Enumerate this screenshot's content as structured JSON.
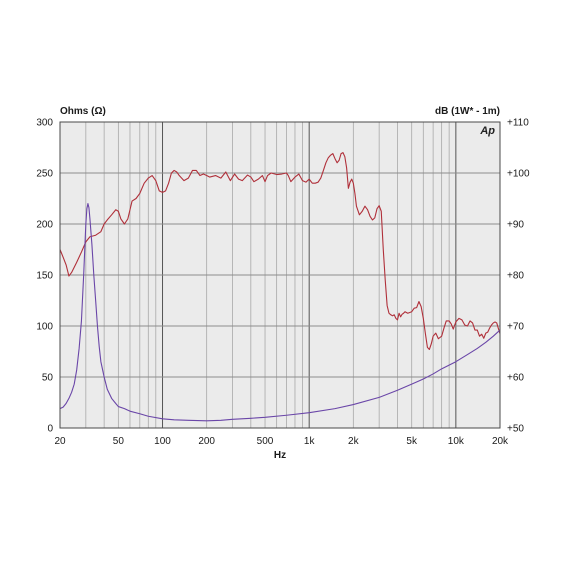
{
  "chart_data": {
    "type": "line",
    "title": "",
    "xlabel": "Hz",
    "ylabel_left": "Ohms (Ω)",
    "ylabel_right": "dB (1W* - 1m)",
    "brand_mark": "Ap",
    "x_scale": "log",
    "xlim": [
      20,
      20000
    ],
    "ylim_left": [
      0,
      300
    ],
    "ylim_right": [
      50,
      110
    ],
    "grid": true,
    "legend": "none",
    "x_ticks": [
      {
        "value": 20,
        "label": "20"
      },
      {
        "value": 50,
        "label": "50"
      },
      {
        "value": 100,
        "label": "100"
      },
      {
        "value": 200,
        "label": "200"
      },
      {
        "value": 500,
        "label": "500"
      },
      {
        "value": 1000,
        "label": "1k"
      },
      {
        "value": 2000,
        "label": "2k"
      },
      {
        "value": 5000,
        "label": "5k"
      },
      {
        "value": 10000,
        "label": "10k"
      },
      {
        "value": 20000,
        "label": "20k"
      }
    ],
    "y_ticks_left": [
      {
        "value": 0,
        "label": "0"
      },
      {
        "value": 50,
        "label": "50"
      },
      {
        "value": 100,
        "label": "100"
      },
      {
        "value": 150,
        "label": "150"
      },
      {
        "value": 200,
        "label": "200"
      },
      {
        "value": 250,
        "label": "250"
      },
      {
        "value": 300,
        "label": "300"
      }
    ],
    "y_ticks_right": [
      {
        "value": 50,
        "label": "+50"
      },
      {
        "value": 60,
        "label": "+60"
      },
      {
        "value": 70,
        "label": "+70"
      },
      {
        "value": 80,
        "label": "+80"
      },
      {
        "value": 90,
        "label": "+90"
      },
      {
        "value": 100,
        "label": "+100"
      },
      {
        "value": 110,
        "label": "+110"
      }
    ],
    "series": [
      {
        "axis": "right",
        "color": "#b0303a",
        "points": [
          [
            20,
            85
          ],
          [
            21,
            83.5
          ],
          [
            22,
            82
          ],
          [
            23,
            79.8
          ],
          [
            24,
            80.5
          ],
          [
            26,
            82.5
          ],
          [
            28,
            84.5
          ],
          [
            30,
            86.5
          ],
          [
            32,
            87.5
          ],
          [
            35,
            87.8
          ],
          [
            38,
            88.5
          ],
          [
            40,
            90
          ],
          [
            42,
            90.8
          ],
          [
            45,
            91.8
          ],
          [
            48,
            92.8
          ],
          [
            50,
            92.5
          ],
          [
            52,
            91
          ],
          [
            55,
            90
          ],
          [
            58,
            91
          ],
          [
            62,
            94.5
          ],
          [
            66,
            95
          ],
          [
            70,
            96
          ],
          [
            75,
            98
          ],
          [
            80,
            99
          ],
          [
            85,
            99.5
          ],
          [
            90,
            98.5
          ],
          [
            95,
            96.5
          ],
          [
            100,
            96.2
          ],
          [
            105,
            96.5
          ],
          [
            110,
            98
          ],
          [
            115,
            100
          ],
          [
            120,
            100.5
          ],
          [
            125,
            100.2
          ],
          [
            130,
            99.5
          ],
          [
            140,
            98.5
          ],
          [
            150,
            99
          ],
          [
            160,
            100.5
          ],
          [
            170,
            100.5
          ],
          [
            180,
            99.5
          ],
          [
            190,
            99.8
          ],
          [
            200,
            99.5
          ],
          [
            210,
            99.2
          ],
          [
            230,
            99.5
          ],
          [
            250,
            99
          ],
          [
            270,
            100.2
          ],
          [
            290,
            98.5
          ],
          [
            310,
            99.8
          ],
          [
            330,
            98.8
          ],
          [
            350,
            98.5
          ],
          [
            380,
            99.6
          ],
          [
            400,
            99.2
          ],
          [
            420,
            98.3
          ],
          [
            450,
            98.8
          ],
          [
            480,
            99.5
          ],
          [
            500,
            98.3
          ],
          [
            520,
            99.5
          ],
          [
            550,
            100
          ],
          [
            600,
            99.7
          ],
          [
            650,
            99.8
          ],
          [
            700,
            100
          ],
          [
            720,
            99.5
          ],
          [
            750,
            98.3
          ],
          [
            800,
            99.2
          ],
          [
            850,
            99.8
          ],
          [
            900,
            98.5
          ],
          [
            950,
            98.2
          ],
          [
            1000,
            98.8
          ],
          [
            1050,
            98
          ],
          [
            1100,
            98
          ],
          [
            1150,
            98.2
          ],
          [
            1200,
            99
          ],
          [
            1250,
            100.5
          ],
          [
            1300,
            102
          ],
          [
            1350,
            103
          ],
          [
            1400,
            103.5
          ],
          [
            1450,
            103.8
          ],
          [
            1500,
            102.8
          ],
          [
            1550,
            102
          ],
          [
            1600,
            102.5
          ],
          [
            1650,
            103.8
          ],
          [
            1700,
            104
          ],
          [
            1750,
            103.2
          ],
          [
            1800,
            101
          ],
          [
            1850,
            97
          ],
          [
            1900,
            98.2
          ],
          [
            1950,
            98.8
          ],
          [
            2000,
            98
          ],
          [
            2050,
            96
          ],
          [
            2100,
            93.5
          ],
          [
            2200,
            91.8
          ],
          [
            2300,
            92.5
          ],
          [
            2400,
            93.5
          ],
          [
            2500,
            92.8
          ],
          [
            2600,
            91.5
          ],
          [
            2700,
            90.8
          ],
          [
            2800,
            91.2
          ],
          [
            2900,
            93
          ],
          [
            3000,
            93.6
          ],
          [
            3100,
            92.5
          ],
          [
            3200,
            85
          ],
          [
            3300,
            79
          ],
          [
            3400,
            74
          ],
          [
            3500,
            72.5
          ],
          [
            3600,
            72.2
          ],
          [
            3700,
            72
          ],
          [
            3800,
            72.2
          ],
          [
            3900,
            71.5
          ],
          [
            4000,
            71.2
          ],
          [
            4100,
            72.5
          ],
          [
            4200,
            71.8
          ],
          [
            4300,
            72.3
          ],
          [
            4400,
            72.5
          ],
          [
            4500,
            72.8
          ],
          [
            4700,
            72.5
          ],
          [
            5000,
            72.8
          ],
          [
            5200,
            73.5
          ],
          [
            5400,
            73.6
          ],
          [
            5600,
            74.8
          ],
          [
            5800,
            73.8
          ],
          [
            6000,
            71.5
          ],
          [
            6200,
            68.5
          ],
          [
            6400,
            65.8
          ],
          [
            6600,
            65.4
          ],
          [
            6800,
            66.5
          ],
          [
            7000,
            68
          ],
          [
            7300,
            68.6
          ],
          [
            7600,
            67.5
          ],
          [
            8000,
            68
          ],
          [
            8300,
            69.6
          ],
          [
            8600,
            71
          ],
          [
            9000,
            71
          ],
          [
            9300,
            70.4
          ],
          [
            9600,
            69.4
          ],
          [
            10000,
            70.8
          ],
          [
            10500,
            71.5
          ],
          [
            11000,
            71.2
          ],
          [
            11500,
            70.2
          ],
          [
            12000,
            70
          ],
          [
            12500,
            71
          ],
          [
            13000,
            70.6
          ],
          [
            13500,
            69.2
          ],
          [
            14000,
            69.2
          ],
          [
            14500,
            68
          ],
          [
            15000,
            68.4
          ],
          [
            15500,
            67.6
          ],
          [
            16000,
            68.6
          ],
          [
            16500,
            68.8
          ],
          [
            17000,
            69.6
          ],
          [
            17500,
            70.2
          ],
          [
            18000,
            70.6
          ],
          [
            18500,
            70.8
          ],
          [
            19000,
            70.6
          ],
          [
            19500,
            69.5
          ],
          [
            20000,
            68.5
          ]
        ]
      },
      {
        "axis": "left",
        "color": "#6a46a8",
        "points": [
          [
            20,
            19
          ],
          [
            21,
            20.5
          ],
          [
            22,
            24
          ],
          [
            23,
            29
          ],
          [
            24,
            35
          ],
          [
            25,
            43
          ],
          [
            26,
            57
          ],
          [
            27,
            78
          ],
          [
            28,
            105
          ],
          [
            29,
            150
          ],
          [
            30,
            200
          ],
          [
            30.5,
            215
          ],
          [
            31,
            220
          ],
          [
            31.5,
            216
          ],
          [
            32,
            205
          ],
          [
            33,
            180
          ],
          [
            34,
            150
          ],
          [
            35,
            125
          ],
          [
            36,
            100
          ],
          [
            37,
            80
          ],
          [
            38,
            65
          ],
          [
            40,
            50
          ],
          [
            42,
            38
          ],
          [
            45,
            29
          ],
          [
            48,
            24
          ],
          [
            50,
            21
          ],
          [
            55,
            19
          ],
          [
            60,
            16.5
          ],
          [
            70,
            14
          ],
          [
            80,
            11.5
          ],
          [
            100,
            9
          ],
          [
            120,
            8
          ],
          [
            150,
            7.5
          ],
          [
            200,
            7
          ],
          [
            250,
            7.5
          ],
          [
            300,
            8.5
          ],
          [
            400,
            9.5
          ],
          [
            500,
            10.5
          ],
          [
            700,
            12.5
          ],
          [
            1000,
            15
          ],
          [
            1500,
            19
          ],
          [
            2000,
            23
          ],
          [
            3000,
            30
          ],
          [
            4000,
            37
          ],
          [
            5000,
            43
          ],
          [
            6000,
            48
          ],
          [
            7000,
            53
          ],
          [
            8000,
            58
          ],
          [
            10000,
            65
          ],
          [
            12000,
            72
          ],
          [
            14000,
            78
          ],
          [
            16000,
            84
          ],
          [
            18000,
            90
          ],
          [
            20000,
            96
          ]
        ]
      }
    ]
  }
}
